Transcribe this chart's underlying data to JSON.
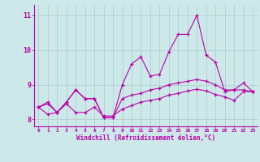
{
  "background_color": "#cce8e8",
  "grid_color": "#aacccc",
  "line_color": "#bb00aa",
  "xlim": [
    -0.5,
    23.5
  ],
  "ylim": [
    7.8,
    11.3
  ],
  "yticks": [
    8,
    9,
    10,
    11
  ],
  "xticks": [
    0,
    1,
    2,
    3,
    4,
    5,
    6,
    7,
    8,
    9,
    10,
    11,
    12,
    13,
    14,
    15,
    16,
    17,
    18,
    19,
    20,
    21,
    22,
    23
  ],
  "xlabel": "Windchill (Refroidissement éolien,°C)",
  "series": [
    [
      8.35,
      8.5,
      8.2,
      8.5,
      8.85,
      8.6,
      8.6,
      8.05,
      8.05,
      9.0,
      9.6,
      9.8,
      9.25,
      9.3,
      9.95,
      10.45,
      10.45,
      11.0,
      9.85,
      9.65,
      8.8,
      8.85,
      9.05,
      8.8
    ],
    [
      8.35,
      8.45,
      8.2,
      8.5,
      8.85,
      8.6,
      8.6,
      8.05,
      8.05,
      8.6,
      8.7,
      8.75,
      8.85,
      8.9,
      9.0,
      9.05,
      9.1,
      9.15,
      9.1,
      9.0,
      8.85,
      8.85,
      8.85,
      8.8
    ],
    [
      8.35,
      8.15,
      8.2,
      8.45,
      8.2,
      8.2,
      8.35,
      8.1,
      8.1,
      8.3,
      8.4,
      8.5,
      8.55,
      8.6,
      8.7,
      8.75,
      8.82,
      8.87,
      8.82,
      8.72,
      8.65,
      8.55,
      8.8,
      8.8
    ]
  ]
}
